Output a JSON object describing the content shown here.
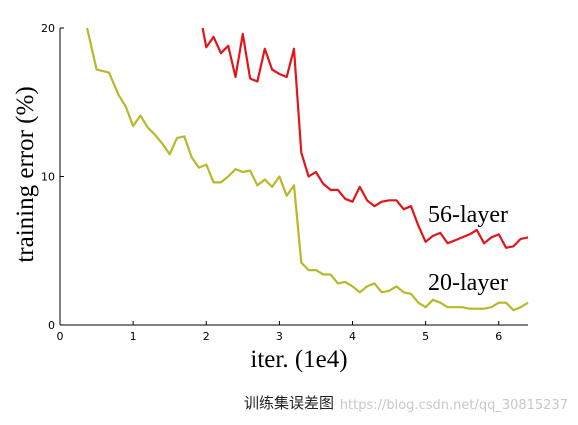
{
  "chart_data": {
    "type": "line",
    "xlabel": "iter. (1e4)",
    "ylabel": "training error (%)",
    "xlim": [
      0,
      6.4
    ],
    "ylim": [
      0,
      20
    ],
    "xticks": [
      0,
      1,
      2,
      3,
      4,
      5,
      6
    ],
    "yticks": [
      0,
      10,
      20
    ],
    "grid": false,
    "series": [
      {
        "name": "56-layer",
        "color": "#e0161c",
        "x": [
          1.95,
          2.0,
          2.1,
          2.2,
          2.3,
          2.4,
          2.5,
          2.6,
          2.7,
          2.8,
          2.9,
          3.0,
          3.1,
          3.2,
          3.3,
          3.4,
          3.5,
          3.6,
          3.7,
          3.8,
          3.9,
          4.0,
          4.1,
          4.2,
          4.3,
          4.4,
          4.5,
          4.6,
          4.7,
          4.8,
          4.9,
          5.0,
          5.1,
          5.2,
          5.3,
          5.4,
          5.5,
          5.6,
          5.7,
          5.8,
          5.9,
          6.0,
          6.1,
          6.2,
          6.3,
          6.4
        ],
        "y": [
          20.0,
          18.7,
          19.4,
          18.3,
          18.8,
          16.7,
          19.6,
          16.6,
          16.4,
          18.6,
          17.2,
          16.9,
          16.7,
          18.6,
          11.6,
          10.0,
          10.3,
          9.5,
          9.1,
          9.1,
          8.5,
          8.3,
          9.3,
          8.4,
          8.0,
          8.3,
          8.4,
          8.4,
          7.8,
          8.0,
          6.7,
          5.6,
          6.0,
          6.2,
          5.5,
          5.7,
          5.9,
          6.1,
          6.4,
          5.5,
          5.9,
          6.1,
          5.2,
          5.3,
          5.8,
          5.9
        ]
      },
      {
        "name": "20-layer",
        "color": "#b9b72a",
        "x": [
          0.37,
          0.5,
          0.67,
          0.8,
          0.9,
          1.0,
          1.1,
          1.2,
          1.3,
          1.4,
          1.5,
          1.6,
          1.7,
          1.8,
          1.9,
          2.0,
          2.1,
          2.2,
          2.3,
          2.4,
          2.5,
          2.6,
          2.7,
          2.8,
          2.9,
          3.0,
          3.1,
          3.2,
          3.3,
          3.4,
          3.5,
          3.6,
          3.7,
          3.8,
          3.9,
          4.0,
          4.1,
          4.2,
          4.3,
          4.4,
          4.5,
          4.6,
          4.7,
          4.8,
          4.9,
          5.0,
          5.1,
          5.2,
          5.3,
          5.4,
          5.5,
          5.6,
          5.7,
          5.8,
          5.9,
          6.0,
          6.1,
          6.2,
          6.3,
          6.4
        ],
        "y": [
          20.0,
          17.2,
          17.0,
          15.5,
          14.7,
          13.4,
          14.1,
          13.3,
          12.8,
          12.2,
          11.5,
          12.6,
          12.7,
          11.3,
          10.6,
          10.8,
          9.6,
          9.6,
          10.0,
          10.5,
          10.3,
          10.4,
          9.4,
          9.8,
          9.3,
          10.0,
          8.7,
          9.4,
          4.2,
          3.7,
          3.7,
          3.4,
          3.4,
          2.8,
          2.9,
          2.6,
          2.2,
          2.6,
          2.8,
          2.2,
          2.3,
          2.6,
          2.2,
          2.1,
          1.5,
          1.2,
          1.7,
          1.5,
          1.2,
          1.2,
          1.2,
          1.1,
          1.1,
          1.1,
          1.2,
          1.5,
          1.5,
          1.0,
          1.2,
          1.5
        ]
      }
    ]
  },
  "caption": "训练集误差图",
  "watermark": "https://blog.csdn.net/qq_30815237"
}
